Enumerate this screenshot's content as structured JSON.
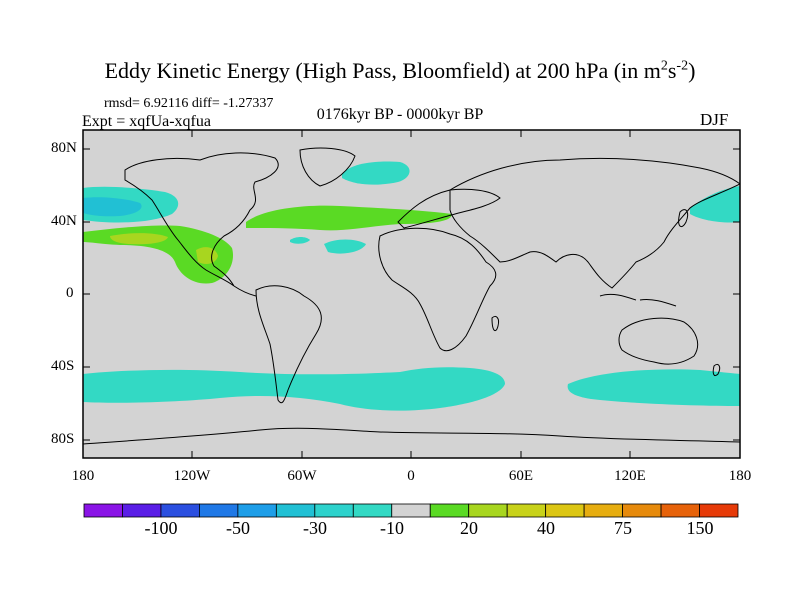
{
  "figure": {
    "title_main": "Eddy Kinetic Energy (High Pass, Bloomfield) at 200 hPa (in m",
    "title_sup1": "2",
    "title_mid": "s",
    "title_sup2": "-2",
    "title_end": ")",
    "stats": "rmsd= 6.92116 diff= -1.27337",
    "experiment": "Expt = xqfUa-xqfua",
    "period": "0176kyr BP - 0000kyr BP",
    "season": "DJF"
  },
  "map": {
    "projection": "cylindrical-equidistant",
    "lon_range": [
      -180,
      180
    ],
    "lat_range": [
      -90,
      90
    ],
    "ocean_land_color": "#d3d3d3",
    "y_ticks": [
      "80N",
      "40N",
      "0",
      "40S",
      "80S"
    ],
    "x_ticks": [
      "180",
      "120W",
      "60W",
      "0",
      "60E",
      "120E",
      "180"
    ],
    "anomaly_regions": [
      {
        "name": "North Pacific (west)",
        "level": "-10 to -30",
        "color": "#33d9c4"
      },
      {
        "name": "North Pacific core",
        "level": "-30 to -50",
        "color": "#21c0d4"
      },
      {
        "name": "North Pacific (east)",
        "level": "-10 to -30",
        "color": "#33d9c4"
      },
      {
        "name": "Subtropical East Pacific",
        "level": "20 to 30",
        "color": "#5ada24"
      },
      {
        "name": "Subtropical East Pacific core",
        "level": "30 to 40",
        "color": "#a8d61f"
      },
      {
        "name": "North Atlantic",
        "level": "20 to 30",
        "color": "#5ada24"
      },
      {
        "name": "Greenland Sea",
        "level": "-10 to -30",
        "color": "#33d9c4"
      },
      {
        "name": "Subtropical North Atlantic",
        "level": "-10 to -30",
        "color": "#33d9c4"
      },
      {
        "name": "Southern Ocean (Pacific/Atlantic)",
        "level": "-10 to -30",
        "color": "#33d9c4"
      },
      {
        "name": "Southern Ocean (Indian/Pacific)",
        "level": "-10 to -30",
        "color": "#33d9c4"
      }
    ]
  },
  "colorbar": {
    "colors": [
      "#8a14e6",
      "#5a1ee6",
      "#2b4fe0",
      "#1f78e6",
      "#1e9ee8",
      "#21c0d4",
      "#2dd2cc",
      "#33d9c4",
      "#d3d3d3",
      "#5ada24",
      "#a8d61f",
      "#c8d21a",
      "#dcc614",
      "#e6ad10",
      "#e68a0c",
      "#e6620a",
      "#e63a08"
    ],
    "labels": [
      "-100",
      "-50",
      "-30",
      "-10",
      "20",
      "40",
      "75",
      "150"
    ]
  }
}
